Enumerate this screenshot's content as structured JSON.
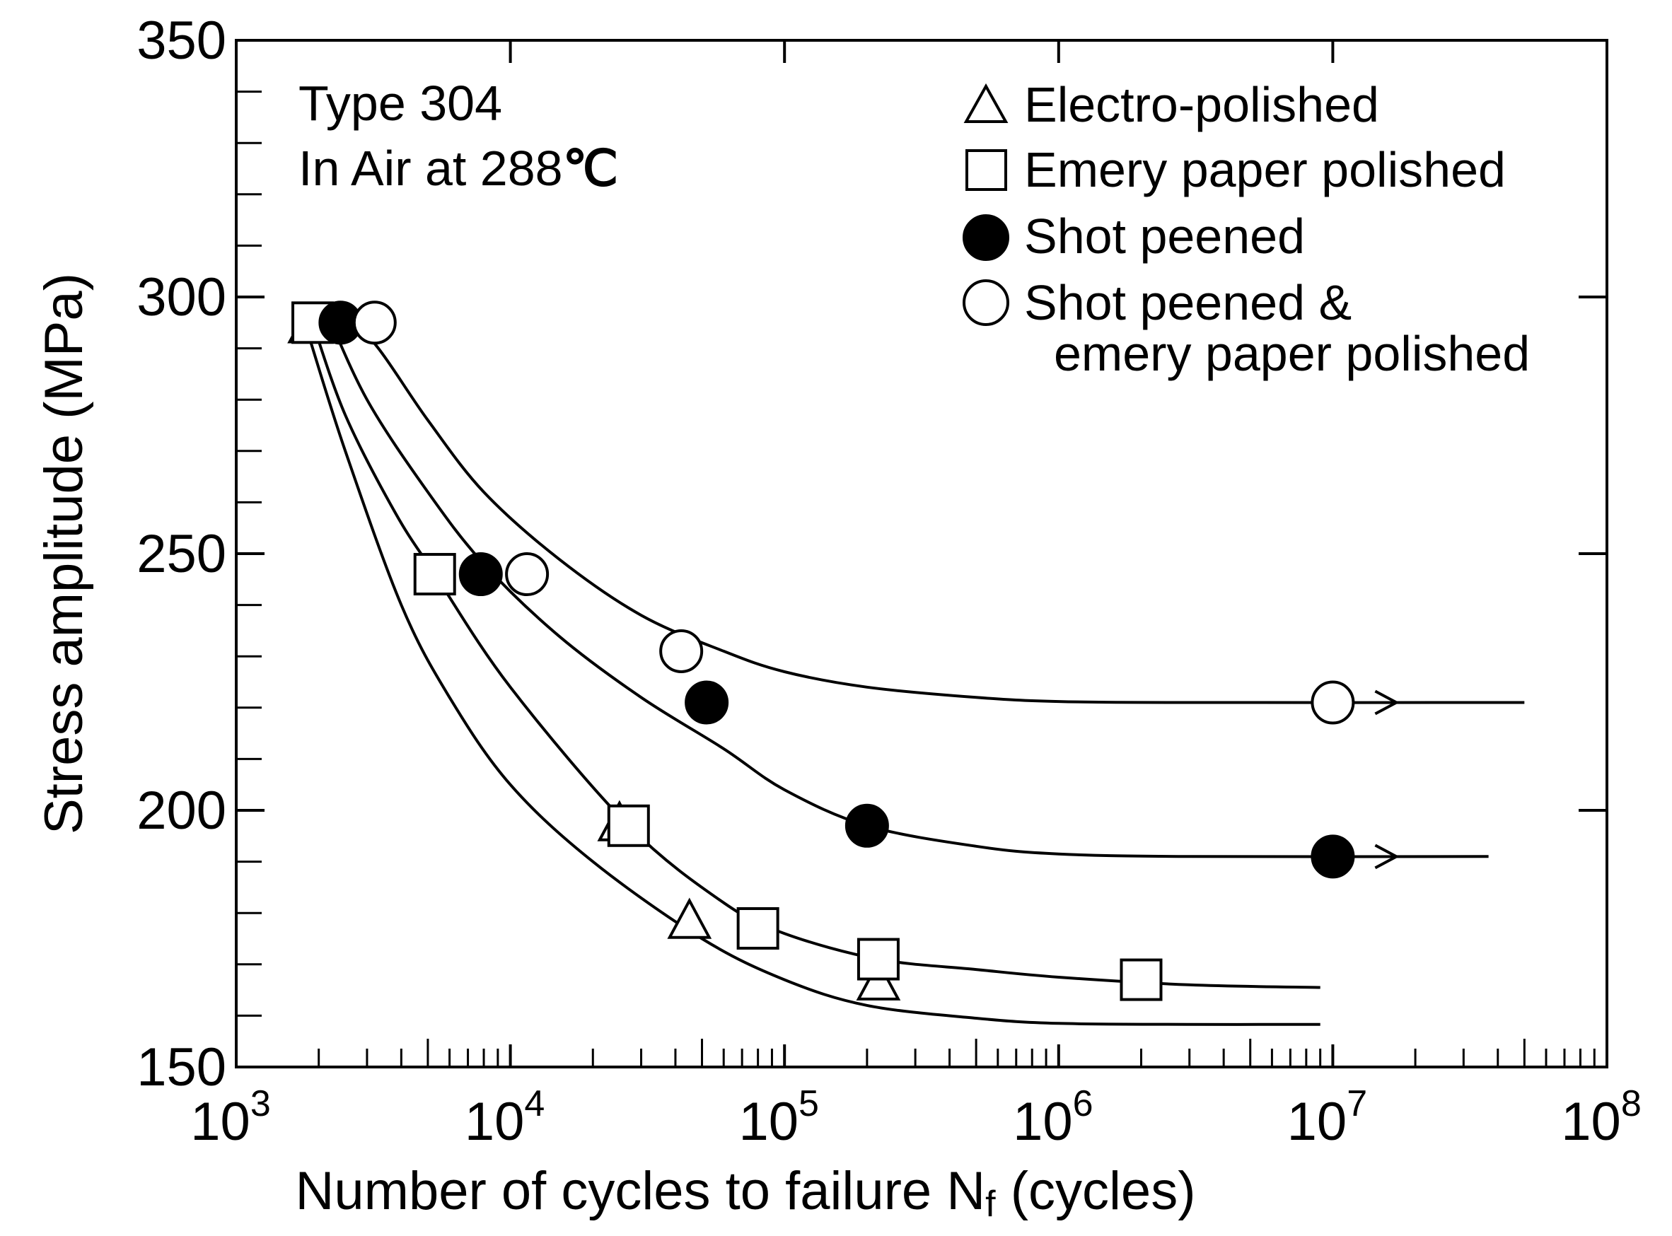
{
  "chart_data": {
    "type": "scatter",
    "title": "",
    "xlabel_main": "Number of cycles to failure N",
    "xlabel_sub": "f",
    "xlabel_tail": " (cycles)",
    "ylabel": "Stress amplitude  (MPa)",
    "xscale": "log",
    "xlim": [
      1000,
      100000000
    ],
    "ylim": [
      150,
      350
    ],
    "x_tick_labels": [
      {
        "base": "10",
        "exp": "3"
      },
      {
        "base": "10",
        "exp": "4"
      },
      {
        "base": "10",
        "exp": "5"
      },
      {
        "base": "10",
        "exp": "6"
      },
      {
        "base": "10",
        "exp": "7"
      },
      {
        "base": "10",
        "exp": "8"
      }
    ],
    "y_ticks": [
      150,
      200,
      250,
      300,
      350
    ],
    "y_tick_labels": [
      "150",
      "200",
      "250",
      "300",
      "350"
    ],
    "annotations": [
      "Type 304",
      "In Air at 288",
      "℃"
    ],
    "legend_position": "top-right",
    "series": [
      {
        "name": "Electro-polished",
        "marker": "triangle-open",
        "points": [
          [
            1850,
            294
          ],
          [
            25000,
            197
          ],
          [
            45000,
            178
          ],
          [
            220000,
            166
          ]
        ],
        "fit_curve": [
          [
            1850,
            292
          ],
          [
            2500,
            270
          ],
          [
            4000,
            240
          ],
          [
            6000,
            222
          ],
          [
            10000,
            205
          ],
          [
            20000,
            190
          ],
          [
            50000,
            175
          ],
          [
            100000,
            167
          ],
          [
            200000,
            162
          ],
          [
            500000,
            159.5
          ],
          [
            1000000,
            158.5
          ],
          [
            3000000,
            158.3
          ],
          [
            9000000,
            158.3
          ]
        ]
      },
      {
        "name": "Emery paper polished",
        "marker": "square-open",
        "points": [
          [
            1900,
            295
          ],
          [
            5300,
            246
          ],
          [
            27000,
            197
          ],
          [
            80000,
            177
          ],
          [
            220000,
            171
          ],
          [
            2000000,
            167
          ]
        ],
        "fit_curve": [
          [
            1900,
            295
          ],
          [
            2500,
            277
          ],
          [
            3800,
            258
          ],
          [
            5300,
            246
          ],
          [
            10000,
            224
          ],
          [
            27000,
            197
          ],
          [
            60000,
            182
          ],
          [
            100000,
            176
          ],
          [
            220000,
            171
          ],
          [
            500000,
            169
          ],
          [
            1000000,
            167.5
          ],
          [
            3000000,
            166
          ],
          [
            9000000,
            165.5
          ]
        ]
      },
      {
        "name": "Shot peened",
        "marker": "circle-filled",
        "points": [
          [
            2400,
            295
          ],
          [
            7800,
            246
          ],
          [
            52000,
            221
          ],
          [
            200000,
            197
          ],
          [
            10000000,
            191
          ]
        ],
        "runout": [
          [
            10000000,
            191
          ]
        ],
        "fit_curve": [
          [
            2100,
            298
          ],
          [
            3000,
            280
          ],
          [
            5000,
            262
          ],
          [
            8000,
            248
          ],
          [
            15000,
            234
          ],
          [
            30000,
            222
          ],
          [
            60000,
            212
          ],
          [
            100000,
            204
          ],
          [
            200000,
            197
          ],
          [
            500000,
            193
          ],
          [
            1000000,
            191.5
          ],
          [
            3000000,
            191
          ],
          [
            37000000,
            191
          ]
        ]
      },
      {
        "name": "Shot peened &",
        "name_line2": "emery paper polished",
        "marker": "circle-open",
        "points": [
          [
            3200,
            295
          ],
          [
            11500,
            246
          ],
          [
            42000,
            231
          ],
          [
            10000000,
            221
          ]
        ],
        "runout": [
          [
            10000000,
            221
          ]
        ],
        "fit_curve": [
          [
            2400,
            298
          ],
          [
            3300,
            290
          ],
          [
            5000,
            276
          ],
          [
            8000,
            262
          ],
          [
            15000,
            249
          ],
          [
            30000,
            238
          ],
          [
            60000,
            231
          ],
          [
            100000,
            227
          ],
          [
            200000,
            224
          ],
          [
            500000,
            222
          ],
          [
            1000000,
            221.2
          ],
          [
            3000000,
            221
          ],
          [
            50000000,
            221
          ]
        ]
      }
    ]
  }
}
